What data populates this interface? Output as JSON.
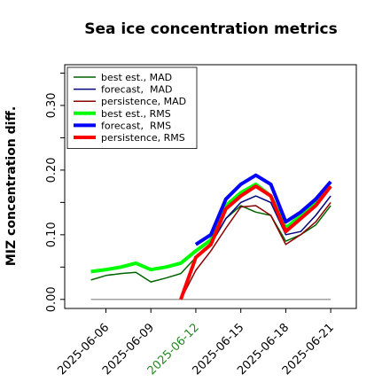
{
  "chart_data": {
    "type": "line",
    "title": "Sea ice concentration metrics",
    "y_label": "MIZ concentration diff.",
    "x": [
      "2025-06-05",
      "2025-06-06",
      "2025-06-07",
      "2025-06-08",
      "2025-06-09",
      "2025-06-10",
      "2025-06-11",
      "2025-06-12",
      "2025-06-13",
      "2025-06-14",
      "2025-06-15",
      "2025-06-16",
      "2025-06-17",
      "2025-06-18",
      "2025-06-19",
      "2025-06-20",
      "2025-06-21"
    ],
    "series": [
      {
        "name": "best est., MAD",
        "color": "#006400",
        "width": 1.5,
        "values": [
          0.03,
          0.037,
          0.04,
          0.042,
          0.027,
          0.033,
          0.04,
          0.065,
          0.085,
          0.125,
          0.145,
          0.135,
          0.13,
          0.09,
          0.1,
          0.115,
          0.145
        ]
      },
      {
        "name": "forecast,  MAD",
        "color": "#000080",
        "width": 1.5,
        "values": [
          null,
          null,
          null,
          null,
          null,
          null,
          null,
          0.065,
          0.085,
          0.125,
          0.15,
          0.16,
          0.15,
          0.1,
          0.105,
          0.13,
          0.16
        ]
      },
      {
        "name": "persistence, MAD",
        "color": "#8b0000",
        "width": 1.5,
        "values": [
          null,
          null,
          null,
          null,
          null,
          null,
          0.0,
          0.045,
          0.075,
          0.11,
          0.143,
          0.145,
          0.13,
          0.085,
          0.1,
          0.12,
          0.15
        ]
      },
      {
        "name": "best est., RMS",
        "color": "#00ff00",
        "width": 4,
        "values": [
          0.043,
          0.046,
          0.05,
          0.056,
          0.046,
          0.05,
          0.056,
          0.075,
          0.092,
          0.145,
          0.165,
          0.178,
          0.16,
          0.11,
          0.13,
          0.15,
          0.175
        ]
      },
      {
        "name": "forecast,  RMS",
        "color": "#0000ff",
        "width": 4,
        "values": [
          null,
          null,
          null,
          null,
          null,
          null,
          null,
          0.085,
          0.1,
          0.155,
          0.178,
          0.192,
          0.178,
          0.12,
          0.135,
          0.155,
          0.182
        ]
      },
      {
        "name": "persistence, RMS",
        "color": "#ff0000",
        "width": 4,
        "values": [
          null,
          null,
          null,
          null,
          null,
          null,
          0.0,
          0.065,
          0.085,
          0.14,
          0.16,
          0.175,
          0.16,
          0.105,
          0.125,
          0.145,
          0.175
        ]
      }
    ],
    "reference_line": {
      "value": 0,
      "color": "#808080"
    },
    "xlim": [
      "2025-06-03T06:00",
      "2025-06-22T17:00"
    ],
    "xticks": [
      "2025-06-06",
      "2025-06-09",
      "2025-06-12",
      "2025-06-15",
      "2025-06-18",
      "2025-06-21"
    ],
    "highlight_xtick": "2025-06-12",
    "highlight_color": "#228b22",
    "ylim": [
      -0.014,
      0.363
    ],
    "yticks": [
      {
        "value": 0,
        "label": "0.00"
      },
      {
        "value": 0.1,
        "label": "0.10"
      },
      {
        "value": 0.2,
        "label": "0.20"
      },
      {
        "value": 0.3,
        "label": "0.30"
      }
    ],
    "yminor_ticks": [
      0.05,
      0.15,
      0.25,
      0.35
    ],
    "legend": "upper left"
  }
}
